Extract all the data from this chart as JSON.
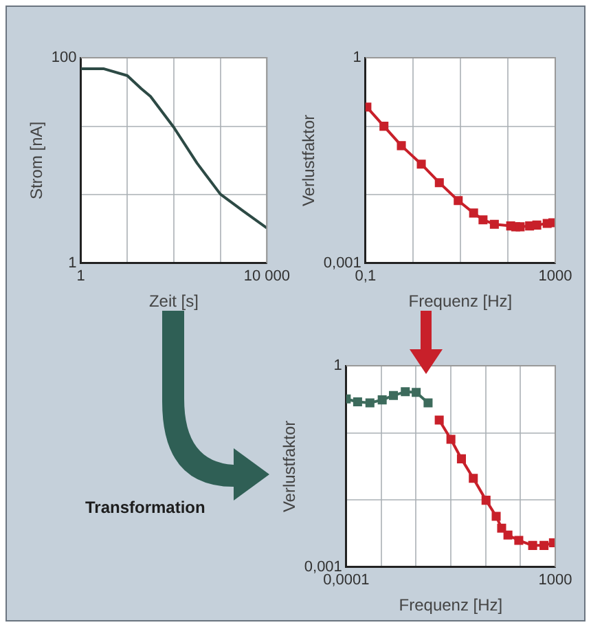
{
  "chart_data": [
    {
      "type": "line",
      "xlabel": "Zeit [s]",
      "ylabel": "Strom [nA]",
      "log": "xy",
      "xlim": [
        1,
        10000
      ],
      "ylim": [
        1,
        100
      ],
      "xticks": [
        {
          "value": 1,
          "label": "1"
        },
        {
          "value": 10,
          "label": null
        },
        {
          "value": 100,
          "label": null
        },
        {
          "value": 1000,
          "label": null
        },
        {
          "value": 10000,
          "label": "10 000"
        }
      ],
      "yticks": [
        {
          "value": 1,
          "label": "1"
        },
        {
          "value": 4.64,
          "label": null
        },
        {
          "value": 21.5,
          "label": null
        },
        {
          "value": 100,
          "label": "100"
        }
      ],
      "grid": true,
      "legend": false,
      "marker": "none",
      "line_style": "solid",
      "series": [
        {
          "color": "#2d4a45",
          "x": [
            1,
            3.16,
            10,
            20,
            31.6,
            100,
            316,
            1000,
            3162,
            10000
          ],
          "values": [
            78,
            78,
            67,
            50,
            42,
            21,
            9.4,
            4.7,
            3.2,
            2.2
          ]
        }
      ]
    },
    {
      "type": "line",
      "xlabel": "Frequenz [Hz]",
      "ylabel": "Verlustfaktor",
      "log": "xy",
      "xlim": [
        0.1,
        1000
      ],
      "ylim": [
        0.001,
        1
      ],
      "xticks": [
        {
          "value": 0.1,
          "label": "0,1"
        },
        {
          "value": 1,
          "label": null
        },
        {
          "value": 10,
          "label": null
        },
        {
          "value": 100,
          "label": null
        },
        {
          "value": 1000,
          "label": "1000"
        }
      ],
      "yticks": [
        {
          "value": 0.001,
          "label": "0,001"
        },
        {
          "value": 0.01,
          "label": null
        },
        {
          "value": 0.1,
          "label": null
        },
        {
          "value": 1,
          "label": "1"
        }
      ],
      "grid": true,
      "legend": false,
      "marker": "square",
      "line_style": "solid",
      "series": [
        {
          "color": "#c8202a",
          "x": [
            0.107,
            0.245,
            0.57,
            1.5,
            3.6,
            9,
            19,
            30,
            52,
            115,
            147,
            182,
            288,
            408,
            675,
            891
          ],
          "values": [
            0.19,
            0.1,
            0.052,
            0.028,
            0.015,
            0.0082,
            0.0054,
            0.0043,
            0.0037,
            0.0035,
            0.0034,
            0.0034,
            0.0035,
            0.0036,
            0.0038,
            0.0039
          ]
        }
      ]
    },
    {
      "type": "line",
      "xlabel": "Frequenz [Hz]",
      "ylabel": "Verlustfaktor",
      "log": "xy",
      "xlim": [
        0.0001,
        1000
      ],
      "ylim": [
        0.001,
        1
      ],
      "xticks": [
        {
          "value": 0.0001,
          "label": "0,0001"
        },
        {
          "value": 0.00147,
          "label": null
        },
        {
          "value": 0.0215,
          "label": null
        },
        {
          "value": 0.316,
          "label": null
        },
        {
          "value": 4.64,
          "label": null
        },
        {
          "value": 68.1,
          "label": null
        },
        {
          "value": 1000,
          "label": "1000"
        }
      ],
      "yticks": [
        {
          "value": 0.001,
          "label": "0,001"
        },
        {
          "value": 0.01,
          "label": null
        },
        {
          "value": 0.1,
          "label": null
        },
        {
          "value": 1,
          "label": "1"
        }
      ],
      "grid": true,
      "legend": false,
      "marker": "square",
      "line_style": "solid",
      "annotations": [
        "Transformation"
      ],
      "series": [
        {
          "color": "#3d6b5c",
          "x": [
            0.0001,
            0.00024,
            0.00062,
            0.0016,
            0.0038,
            0.0095,
            0.022,
            0.055
          ],
          "values": [
            0.32,
            0.29,
            0.28,
            0.31,
            0.36,
            0.41,
            0.4,
            0.28
          ]
        },
        {
          "color": "#c8202a",
          "x": [
            0.13,
            0.32,
            0.72,
            1.8,
            4.8,
            10.5,
            16,
            26,
            60,
            175,
            420,
            870
          ],
          "values": [
            0.155,
            0.08,
            0.041,
            0.021,
            0.0099,
            0.0057,
            0.0038,
            0.003,
            0.0025,
            0.0021,
            0.0021,
            0.0023
          ]
        }
      ]
    }
  ]
}
